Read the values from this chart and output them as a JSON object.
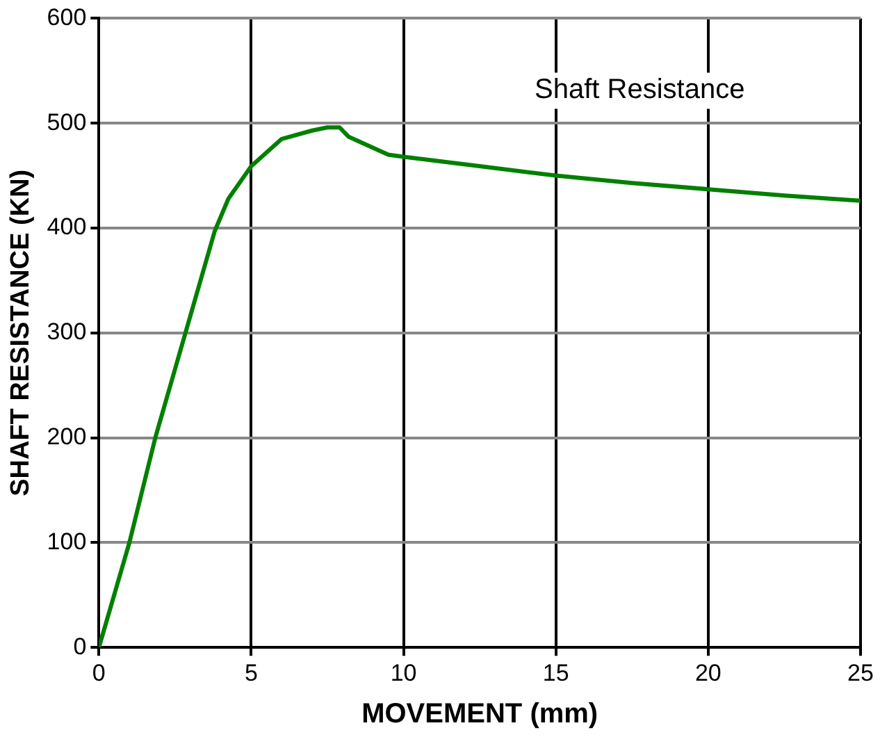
{
  "chart_data": {
    "type": "line",
    "xlabel": "MOVEMENT (mm)",
    "ylabel": "SHAFT RESISTANCE (KN)",
    "xlim": [
      0,
      25
    ],
    "xticks": [
      0,
      5,
      10,
      15,
      20,
      25
    ],
    "ylim": [
      0,
      600
    ],
    "yticks": [
      0,
      100,
      200,
      300,
      400,
      500,
      600
    ],
    "grid": true,
    "legend": false,
    "marker": "none",
    "line_style": "solid",
    "series": [
      {
        "name": "Shaft Resistance",
        "color": "#008000",
        "x": [
          0,
          1,
          1.85,
          2.8,
          3.8,
          4.25,
          5,
          6,
          7,
          7.5,
          7.9,
          8.2,
          9.5,
          10,
          12.5,
          15,
          17.5,
          20,
          22.5,
          25
        ],
        "values": [
          0,
          100,
          200,
          296,
          397,
          428,
          459,
          485,
          493,
          496,
          496,
          487,
          470,
          468,
          459,
          450,
          443,
          437,
          431,
          426
        ]
      }
    ]
  }
}
